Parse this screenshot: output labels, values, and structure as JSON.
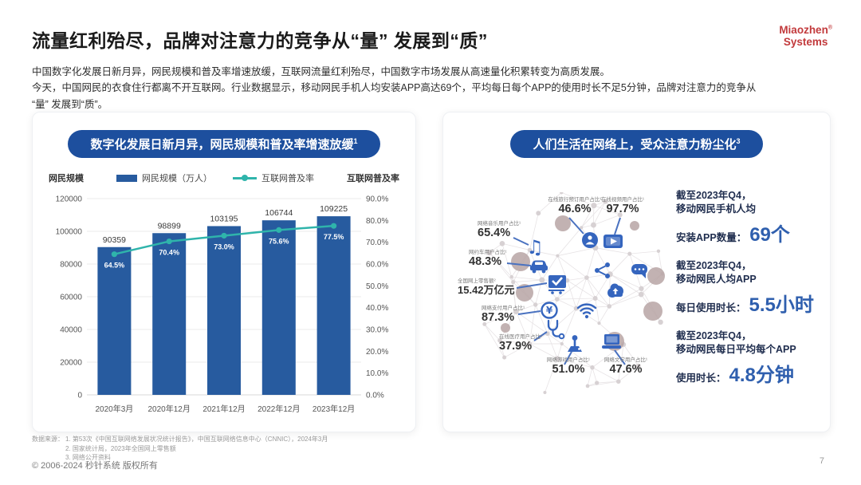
{
  "header": {
    "title": "流量红利殆尽，品牌对注意力的竞争从“量” 发展到“质”",
    "paragraph_lines": [
      "中国数字化发展日新月异，网民规模和普及率增速放缓，互联网流量红利殆尽，中国数字市场发展从高速量化积累转变为高质发展。",
      "今天，中国网民的衣食住行都离不开互联网。行业数据显示，移动网民手机人均安装APP高达69个，平均每日每个APP的使用时长不足5分钟，品牌对注意力的竞争从",
      "“量” 发展到“质”。"
    ],
    "logo_line1": "Miaozhen",
    "logo_reg": "®",
    "logo_line2": "Systems"
  },
  "left_panel": {
    "title": "数字化发展日新月异，网民规模和普及率增速放缓",
    "title_sup": "1",
    "axis_left_label": "网民规模",
    "axis_right_label": "互联网普及率",
    "legend": [
      {
        "label": "网民规模（万人）"
      },
      {
        "label": "互联网普及率"
      }
    ]
  },
  "chart_data": {
    "type": "bar",
    "title": "数字化发展日新月异，网民规模和普及率增速放缓",
    "categories": [
      "2020年3月",
      "2020年12月",
      "2021年12月",
      "2022年12月",
      "2023年12月"
    ],
    "series": [
      {
        "name": "网民规模（万人）",
        "type": "bar",
        "values": [
          90359,
          98899,
          103195,
          106744,
          109225
        ],
        "labels": [
          "90359",
          "98899",
          "103195",
          "106744",
          "109225"
        ]
      },
      {
        "name": "互联网普及率",
        "type": "line",
        "values": [
          64.5,
          70.4,
          73.0,
          75.6,
          77.5
        ],
        "labels": [
          "64.5%",
          "70.4%",
          "73.0%",
          "75.6%",
          "77.5%"
        ]
      }
    ],
    "ylabel_left": "网民规模",
    "ylabel_right": "互联网普及率",
    "ylim_left": [
      0,
      120000
    ],
    "ylim_right": [
      0,
      90
    ],
    "left_ticks": [
      "0",
      "20000",
      "40000",
      "60000",
      "80000",
      "100000",
      "120000"
    ],
    "right_ticks": [
      "0.0%",
      "10.0%",
      "20.0%",
      "30.0%",
      "40.0%",
      "50.0%",
      "60.0%",
      "70.0%",
      "80.0%",
      "90.0%"
    ],
    "grid": true,
    "legend_position": "top"
  },
  "right_panel": {
    "title": "人们生活在网络上，受众注意力粉尘化",
    "title_sup": "3",
    "callouts": [
      {
        "id": "music",
        "label": "网络音乐用户占比¹",
        "value": "65.4%",
        "icon": "music-icon"
      },
      {
        "id": "travel",
        "label": "在线旅行预订用户占比¹",
        "value": "46.6%",
        "icon": "travel-icon"
      },
      {
        "id": "video",
        "label": "在线视频用户占比¹",
        "value": "97.7%",
        "icon": "video-icon"
      },
      {
        "id": "taxi",
        "label": "网约车用户占比¹",
        "value": "48.3%",
        "icon": "taxi-icon"
      },
      {
        "id": "retail",
        "label": "全国网上零售额²",
        "value": "15.42万亿元",
        "icon": "cart-icon"
      },
      {
        "id": "payment",
        "label": "网络支付用户占比¹",
        "value": "87.3%",
        "icon": "payment-icon"
      },
      {
        "id": "medical",
        "label": "在线医疗用户占比¹",
        "value": "37.9%",
        "icon": "medical-icon"
      },
      {
        "id": "game",
        "label": "网络游戏用户占比¹",
        "value": "51.0%",
        "icon": "game-icon"
      },
      {
        "id": "reading",
        "label": "网络文学用户占比¹",
        "value": "47.6%",
        "icon": "reading-icon"
      }
    ],
    "decor_icons": [
      "share-icon",
      "chat-icon",
      "cloud-icon",
      "wifi-icon"
    ],
    "stats": [
      {
        "line1": "截至2023年Q4，",
        "line2": "移动网民手机人均",
        "prefix": "安装APP数量：",
        "big": "69个"
      },
      {
        "line1": "截至2023年Q4，",
        "line2": "移动网民人均APP",
        "prefix": "每日使用时长：",
        "big": "5.5小时"
      },
      {
        "line1": "截至2023年Q4，",
        "line2": "移动网民每日平均每个APP",
        "prefix": "使用时长：",
        "big": "4.8分钟"
      }
    ]
  },
  "footer": {
    "sources_label": "数据来源：",
    "sources": [
      "1. 第53次《中国互联网络发展状况统计报告》，中国互联网络信息中心（CNNIC），2024年3月",
      "2. 国家统计局，2023年全国网上零售额",
      "3. 网络公开资料"
    ],
    "copyright": "© 2006-2024 秒针系统 版权所有",
    "page_number": "7"
  },
  "colors": {
    "pill_blue": "#1d4f9e",
    "bar_blue": "#275b9f",
    "line_teal": "#2fb4ab",
    "stat_blue": "#2f5fae",
    "icon_blue": "#3565be",
    "connector_blue": "#4a72c0",
    "node_taupe": "#b7a4a4",
    "logo_red": "#c23a3c"
  }
}
